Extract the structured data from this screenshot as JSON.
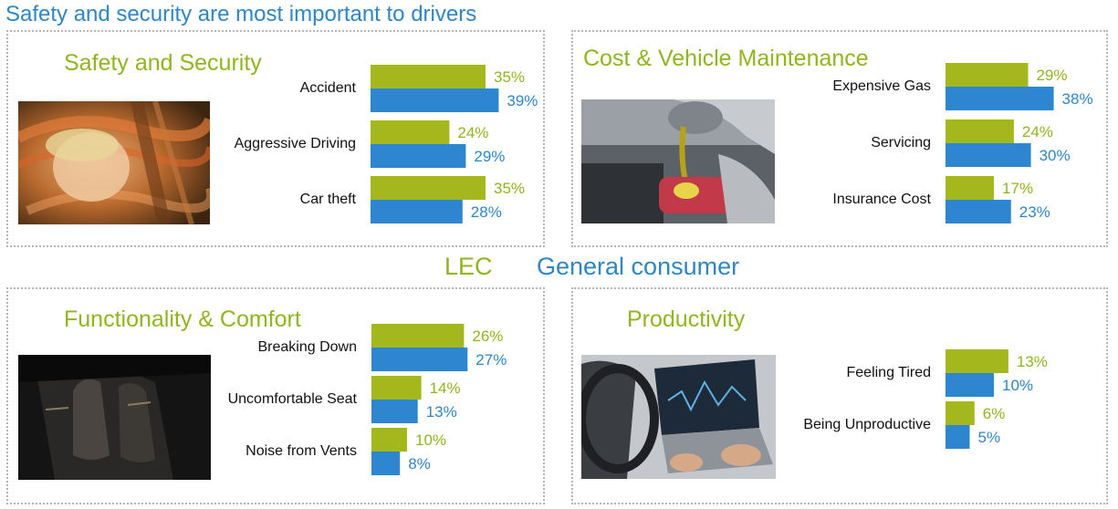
{
  "title": "Safety and security are most important to drivers",
  "colors": {
    "lec": "#a4b81e",
    "general": "#2e86d0",
    "lec_text": "#8fb61c",
    "general_text": "#2e86c8"
  },
  "legend": {
    "lec": "LEC",
    "general": "General consumer"
  },
  "chart_data": [
    {
      "type": "bar",
      "orientation": "horizontal",
      "title": "Safety and Security",
      "categories": [
        "Accident",
        "Aggressive Driving",
        "Car theft"
      ],
      "series": [
        {
          "name": "LEC",
          "values": [
            35,
            24,
            35
          ]
        },
        {
          "name": "General consumer",
          "values": [
            39,
            29,
            28
          ]
        }
      ],
      "value_format": "percent"
    },
    {
      "type": "bar",
      "orientation": "horizontal",
      "title": "Cost & Vehicle Maintenance",
      "categories": [
        "Expensive Gas",
        "Servicing",
        "Insurance Cost"
      ],
      "series": [
        {
          "name": "LEC",
          "values": [
            29,
            24,
            17
          ]
        },
        {
          "name": "General consumer",
          "values": [
            38,
            30,
            23
          ]
        }
      ],
      "value_format": "percent"
    },
    {
      "type": "bar",
      "orientation": "horizontal",
      "title": "Functionality & Comfort",
      "categories": [
        "Breaking Down",
        "Uncomfortable Seat",
        "Noise from Vents"
      ],
      "series": [
        {
          "name": "LEC",
          "values": [
            26,
            14,
            10
          ]
        },
        {
          "name": "General consumer",
          "values": [
            27,
            13,
            8
          ]
        }
      ],
      "value_format": "percent"
    },
    {
      "type": "bar",
      "orientation": "horizontal",
      "title": "Productivity",
      "categories": [
        "Feeling Tired",
        "Being Unproductive"
      ],
      "series": [
        {
          "name": "LEC",
          "values": [
            13,
            6
          ]
        },
        {
          "name": "General consumer",
          "values": [
            10,
            5
          ]
        }
      ],
      "value_format": "percent"
    }
  ]
}
